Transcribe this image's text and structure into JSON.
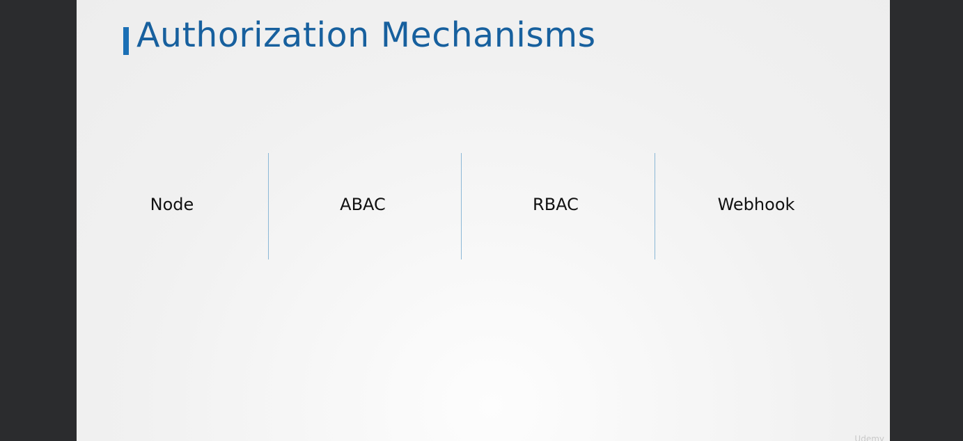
{
  "slide": {
    "title": "Authorization Mechanisms",
    "mechanisms": [
      {
        "label": "Node"
      },
      {
        "label": "ABAC"
      },
      {
        "label": "RBAC"
      },
      {
        "label": "Webhook"
      }
    ],
    "watermark": "Udemy"
  },
  "colors": {
    "title": "#17609e",
    "title_accent_bar": "#1a6fb5",
    "divider": "#8ab7d6",
    "letterbox": "#2b2c2e"
  }
}
